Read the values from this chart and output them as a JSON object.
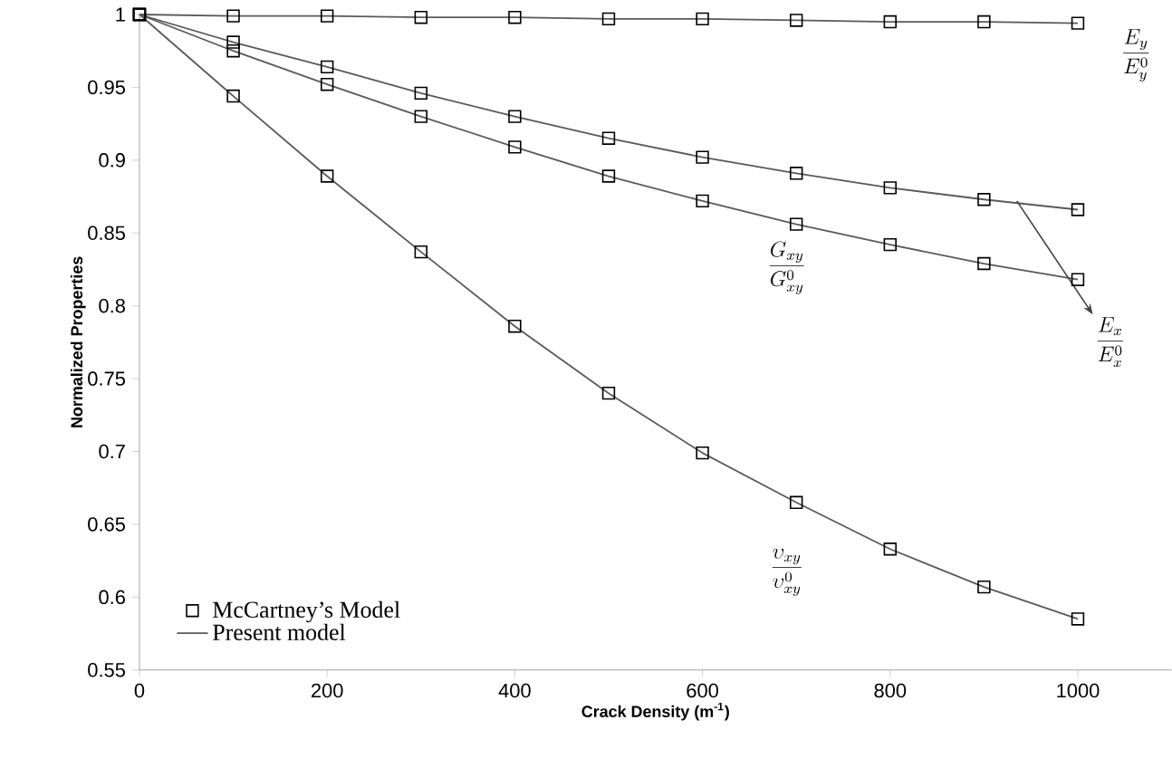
{
  "chart_data": {
    "type": "line",
    "xlabel": "Crack Density (m$^{-1}$)",
    "ylabel": "Normalized Properties",
    "x": [
      0,
      100,
      200,
      300,
      400,
      500,
      600,
      700,
      800,
      900,
      1000
    ],
    "xlim": [
      0,
      1100
    ],
    "xticks": [
      0,
      200,
      400,
      600,
      800,
      1000
    ],
    "ylim": [
      0.55,
      1
    ],
    "yticks": [
      {
        "value": 0.55,
        "label": "0.55"
      },
      {
        "value": 0.6,
        "label": "0.6"
      },
      {
        "value": 0.65,
        "label": "0.65"
      },
      {
        "value": 0.7,
        "label": "0.7"
      },
      {
        "value": 0.75,
        "label": "0.75"
      },
      {
        "value": 0.8,
        "label": "0.8"
      },
      {
        "value": 0.85,
        "label": "0.85"
      },
      {
        "value": 0.9,
        "label": "0.9"
      },
      {
        "value": 0.95,
        "label": "0.95"
      },
      {
        "value": 1,
        "label": "1"
      }
    ],
    "grid": false,
    "legend": "bottom left",
    "series": [
      {
        "type": "scatter",
        "marker": "square",
        "name": "McCartney’s Model",
        "color": "#000000",
        "values": [
          1,
          0.999,
          0.999,
          0.998,
          0.998,
          0.997,
          0.997,
          0.996,
          0.995,
          0.995,
          0.994
        ]
      },
      {
        "type": "scatter",
        "marker": "square",
        "color": "#000000",
        "values": [
          1,
          0.981,
          0.964,
          0.946,
          0.93,
          0.915,
          0.902,
          0.891,
          0.881,
          0.873,
          0.866
        ]
      },
      {
        "type": "scatter",
        "marker": "square",
        "color": "#000000",
        "values": [
          1,
          0.975,
          0.952,
          0.93,
          0.909,
          0.889,
          0.872,
          0.856,
          0.842,
          0.829,
          0.818
        ]
      },
      {
        "type": "scatter",
        "marker": "square",
        "color": "#000000",
        "values": [
          1,
          0.944,
          0.889,
          0.837,
          0.786,
          0.74,
          0.699,
          0.665,
          0.633,
          0.607,
          0.585
        ]
      },
      {
        "marker": "none",
        "name": "Present model",
        "color": "#595959",
        "values": [
          1,
          0.999,
          0.999,
          0.998,
          0.998,
          0.997,
          0.997,
          0.996,
          0.995,
          0.995,
          0.994
        ]
      },
      {
        "marker": "none",
        "color": "#595959",
        "values": [
          1,
          0.981,
          0.964,
          0.946,
          0.93,
          0.915,
          0.902,
          0.891,
          0.881,
          0.873,
          0.866
        ]
      },
      {
        "marker": "none",
        "color": "#595959",
        "values": [
          1,
          0.975,
          0.952,
          0.93,
          0.909,
          0.889,
          0.872,
          0.856,
          0.842,
          0.829,
          0.818
        ]
      },
      {
        "marker": "none",
        "color": "#595959",
        "values": [
          1,
          0.944,
          0.889,
          0.837,
          0.786,
          0.74,
          0.699,
          0.665,
          0.633,
          0.607,
          0.585
        ]
      }
    ],
    "annotations": [
      "\\frac{E_y}{E_y^0}",
      "\\frac{G_{xy}}{G_{xy}^0}",
      {
        "text": "\\frac{E_x}{E_x^0}",
        "x": 935,
        "y": 0.872
      },
      "\\frac{\\upsilon_{xy}}{\\upsilon_{xy}^0}"
    ]
  }
}
